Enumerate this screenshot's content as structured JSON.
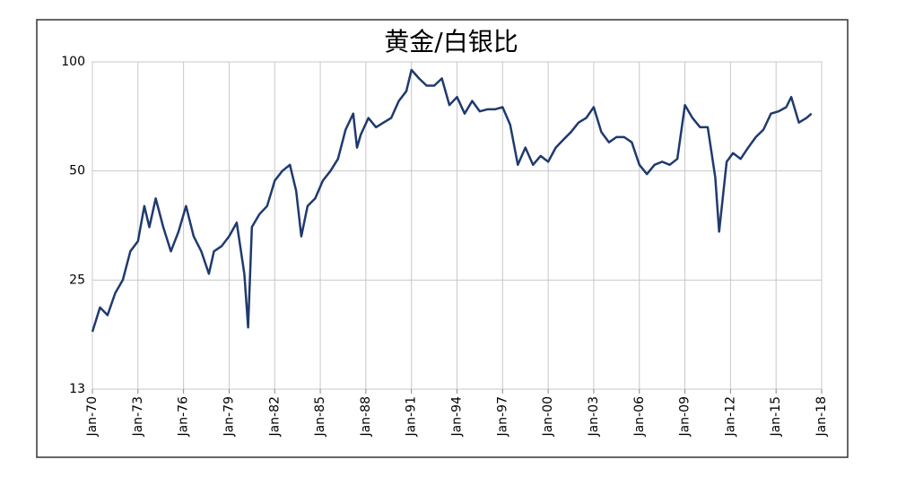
{
  "chart_data": {
    "type": "line",
    "title": "黄金/白银比",
    "log_scale": true,
    "grid": true,
    "x": [
      "1970-01",
      "1970-07",
      "1971-01",
      "1971-07",
      "1972-01",
      "1972-07",
      "1973-01",
      "1973-06",
      "1973-10",
      "1974-03",
      "1974-09",
      "1975-03",
      "1975-09",
      "1976-03",
      "1976-09",
      "1977-03",
      "1977-09",
      "1978-01",
      "1978-07",
      "1979-01",
      "1979-07",
      "1980-01",
      "1980-04",
      "1980-07",
      "1981-01",
      "1981-07",
      "1982-01",
      "1982-07",
      "1983-01",
      "1983-06",
      "1983-10",
      "1984-03",
      "1984-09",
      "1985-03",
      "1985-09",
      "1986-03",
      "1986-09",
      "1987-03",
      "1987-06",
      "1987-09",
      "1988-03",
      "1988-09",
      "1989-03",
      "1989-09",
      "1990-03",
      "1990-09",
      "1991-01",
      "1991-07",
      "1992-01",
      "1992-07",
      "1993-01",
      "1993-07",
      "1994-01",
      "1994-07",
      "1995-01",
      "1995-07",
      "1996-01",
      "1996-07",
      "1997-01",
      "1997-07",
      "1998-01",
      "1998-07",
      "1999-01",
      "1999-07",
      "2000-01",
      "2000-07",
      "2001-01",
      "2001-07",
      "2002-01",
      "2002-07",
      "2003-01",
      "2003-07",
      "2004-01",
      "2004-07",
      "2005-01",
      "2005-07",
      "2006-01",
      "2006-07",
      "2007-01",
      "2007-07",
      "2008-01",
      "2008-07",
      "2009-01",
      "2009-07",
      "2010-01",
      "2010-07",
      "2011-01",
      "2011-04",
      "2011-10",
      "2012-03",
      "2012-09",
      "2013-03",
      "2013-09",
      "2014-03",
      "2014-09",
      "2015-03",
      "2015-09",
      "2016-01",
      "2016-07",
      "2017-01",
      "2017-05"
    ],
    "series": [
      {
        "name": "黄金/白银比",
        "color": "#1f3a6e",
        "values": [
          18,
          21,
          20,
          23,
          25,
          30,
          32,
          40,
          35,
          42,
          35,
          30,
          34,
          40,
          33,
          30,
          26,
          30,
          31,
          33,
          36,
          26,
          18.5,
          35,
          38,
          40,
          47,
          50,
          52,
          44,
          33,
          40,
          42,
          47,
          50,
          54,
          65,
          72,
          58,
          63,
          70,
          66,
          68,
          70,
          78,
          83,
          95,
          90,
          86,
          86,
          90,
          76,
          80,
          72,
          78,
          73,
          74,
          74,
          75,
          67,
          52,
          58,
          52,
          55,
          53,
          58,
          61,
          64,
          68,
          70,
          75,
          64,
          60,
          62,
          62,
          60,
          52,
          49,
          52,
          53,
          52,
          54,
          76,
          70,
          66,
          66,
          48,
          34,
          53,
          56,
          54,
          58,
          62,
          65,
          72,
          73,
          75,
          80,
          68,
          70,
          72
        ]
      }
    ],
    "ylim": [
      12.5,
      100
    ],
    "yticks": [
      {
        "value": 12.5,
        "label": "13"
      },
      25,
      50,
      100
    ],
    "xlim": [
      "1970-01",
      "2018-01"
    ],
    "xticks": [
      {
        "value": "1970-01",
        "label": "Jan-70"
      },
      {
        "value": "1973-01",
        "label": "Jan-73"
      },
      {
        "value": "1976-01",
        "label": "Jan-76"
      },
      {
        "value": "1979-01",
        "label": "Jan-79"
      },
      {
        "value": "1982-01",
        "label": "Jan-82"
      },
      {
        "value": "1985-01",
        "label": "Jan-85"
      },
      {
        "value": "1988-01",
        "label": "Jan-88"
      },
      {
        "value": "1991-01",
        "label": "Jan-91"
      },
      {
        "value": "1994-01",
        "label": "Jan-94"
      },
      {
        "value": "1997-01",
        "label": "Jan-97"
      },
      {
        "value": "2000-01",
        "label": "Jan-00"
      },
      {
        "value": "2003-01",
        "label": "Jan-03"
      },
      {
        "value": "2006-01",
        "label": "Jan-06"
      },
      {
        "value": "2009-01",
        "label": "Jan-09"
      },
      {
        "value": "2012-01",
        "label": "Jan-12"
      },
      {
        "value": "2015-01",
        "label": "Jan-15"
      },
      {
        "value": "2018-01",
        "label": "Jan-18"
      }
    ]
  }
}
